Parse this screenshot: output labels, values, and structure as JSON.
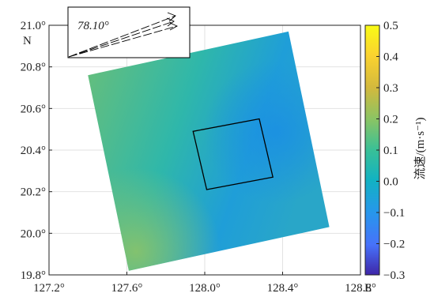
{
  "chart_data": {
    "type": "heatmap",
    "title": "",
    "x_axis": {
      "unit_label": "E",
      "tick_labels": [
        "127.2°",
        "127.6°",
        "128.0°",
        "128.4°",
        "128.8°"
      ],
      "tick_values": [
        127.2,
        127.6,
        128.0,
        128.4,
        128.8
      ],
      "range": [
        127.2,
        128.8
      ]
    },
    "y_axis": {
      "unit_label": "N",
      "tick_labels": [
        "19.8°",
        "20.0°",
        "20.2°",
        "20.4°",
        "20.6°",
        "20.8°",
        "21.0°"
      ],
      "tick_values": [
        19.8,
        20.0,
        20.2,
        20.4,
        20.6,
        20.8,
        21.0
      ],
      "range": [
        19.8,
        21.0
      ]
    },
    "grid": true,
    "colorbar": {
      "label": "流速/(m·s⁻¹)",
      "range": [
        -0.3,
        0.5
      ],
      "tick_labels": [
        "0.5",
        "0.4",
        "0.3",
        "0.2",
        "0.1",
        "0.0",
        "−0.1",
        "−0.2",
        "−0.3"
      ],
      "tick_values": [
        0.5,
        0.4,
        0.3,
        0.2,
        0.1,
        0.0,
        -0.1,
        -0.2,
        -0.3
      ],
      "colormap": [
        "#3e26a8",
        "#4772fa",
        "#2797eb",
        "#12b2c2",
        "#39c097",
        "#88c465",
        "#d3b93d",
        "#fbd32f",
        "#f9fb15"
      ]
    },
    "field": {
      "outer_region": [
        [
          127.4,
          20.76
        ],
        [
          128.43,
          20.97
        ],
        [
          128.64,
          20.03
        ],
        [
          127.61,
          19.82
        ]
      ],
      "inner_box": [
        [
          127.94,
          20.49
        ],
        [
          128.28,
          20.55
        ],
        [
          128.35,
          20.27
        ],
        [
          128.01,
          20.21
        ]
      ],
      "velocity_samples": [
        {
          "lon": 127.45,
          "lat": 20.7,
          "value": 0.19
        },
        {
          "lon": 127.62,
          "lat": 19.9,
          "value": 0.2
        },
        {
          "lon": 128.4,
          "lat": 20.9,
          "value": 0.1
        },
        {
          "lon": 128.55,
          "lat": 20.1,
          "value": 0.09
        },
        {
          "lon": 128.35,
          "lat": 20.45,
          "value": 0.03
        },
        {
          "lon": 127.9,
          "lat": 20.3,
          "value": 0.13
        }
      ]
    },
    "inset": {
      "angle_label": "78.10°"
    }
  }
}
